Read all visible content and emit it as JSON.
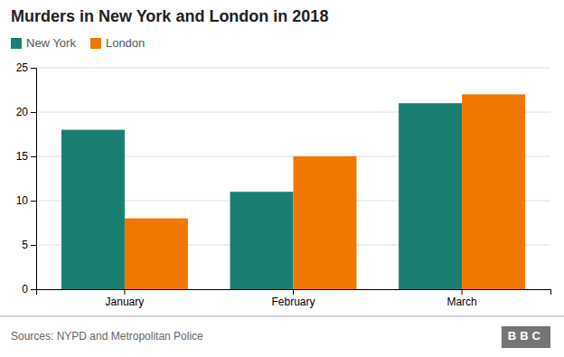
{
  "chart_data": {
    "type": "bar",
    "title": "Murders in New York and London in 2018",
    "categories": [
      "January",
      "February",
      "March"
    ],
    "series": [
      {
        "name": "New York",
        "color": "#1a7f72",
        "values": [
          18,
          11,
          21
        ]
      },
      {
        "name": "London",
        "color": "#f07800",
        "values": [
          8,
          15,
          22
        ]
      }
    ],
    "ylim": [
      0,
      25
    ],
    "yticks": [
      0,
      5,
      10,
      15,
      20,
      25
    ],
    "grid": true,
    "legend": "top-left",
    "annotations": [
      "Sources: NYPD and Metropolitan Police",
      "BBC"
    ]
  }
}
